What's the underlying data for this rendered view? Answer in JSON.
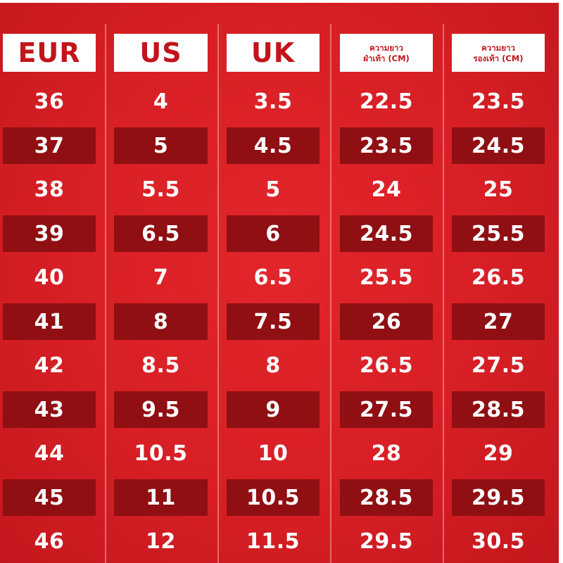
{
  "headers": {
    "eur": "EUR",
    "us": "US",
    "uk": "UK",
    "foot_line1": "ความยาว",
    "foot_line2": "ฝ่าเท้า (CM)",
    "sole_line1": "ความยาว",
    "sole_line2": "รองเท้า (CM)"
  },
  "rows": [
    {
      "eur": "36",
      "us": "4",
      "uk": "3.5",
      "foot": "22.5",
      "sole": "23.5"
    },
    {
      "eur": "37",
      "us": "5",
      "uk": "4.5",
      "foot": "23.5",
      "sole": "24.5"
    },
    {
      "eur": "38",
      "us": "5.5",
      "uk": "5",
      "foot": "24",
      "sole": "25"
    },
    {
      "eur": "39",
      "us": "6.5",
      "uk": "6",
      "foot": "24.5",
      "sole": "25.5"
    },
    {
      "eur": "40",
      "us": "7",
      "uk": "6.5",
      "foot": "25.5",
      "sole": "26.5"
    },
    {
      "eur": "41",
      "us": "8",
      "uk": "7.5",
      "foot": "26",
      "sole": "27"
    },
    {
      "eur": "42",
      "us": "8.5",
      "uk": "8",
      "foot": "26.5",
      "sole": "27.5"
    },
    {
      "eur": "43",
      "us": "9.5",
      "uk": "9",
      "foot": "27.5",
      "sole": "28.5"
    },
    {
      "eur": "44",
      "us": "10.5",
      "uk": "10",
      "foot": "28",
      "sole": "29"
    },
    {
      "eur": "45",
      "us": "11",
      "uk": "10.5",
      "foot": "28.5",
      "sole": "29.5"
    },
    {
      "eur": "46",
      "us": "12",
      "uk": "11.5",
      "foot": "29.5",
      "sole": "30.5"
    }
  ],
  "colors": {
    "background": "#d71f25",
    "stripe": "#8f0f13",
    "header_bg": "#ffffff",
    "header_text": "#c3141b",
    "cell_text": "#ffffff"
  }
}
